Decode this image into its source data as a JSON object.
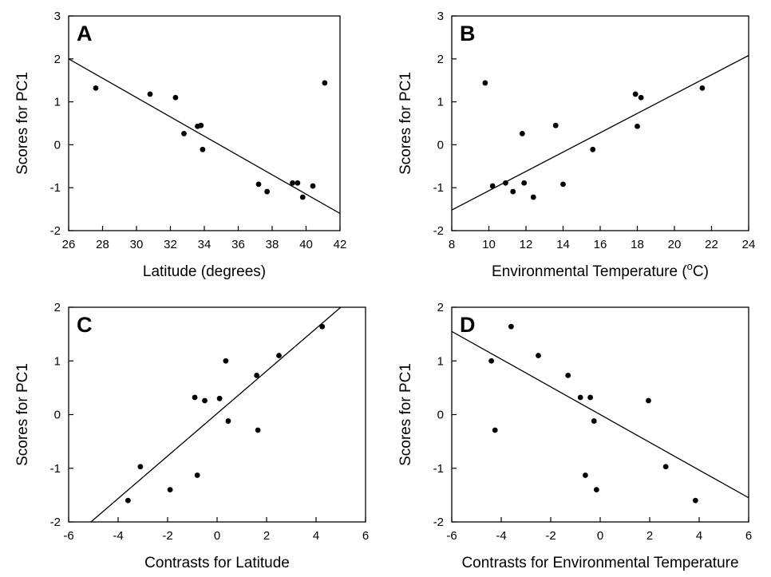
{
  "chart_data": [
    {
      "type": "scatter",
      "panel": "A",
      "xlabel": "Latitude (degrees)",
      "ylabel": "Scores for PC1",
      "xlim": [
        26,
        42
      ],
      "ylim": [
        -2,
        3
      ],
      "xticks": [
        26,
        28,
        30,
        32,
        34,
        36,
        38,
        40,
        42
      ],
      "yticks": [
        -2,
        -1,
        0,
        1,
        2,
        3
      ],
      "points": [
        {
          "x": 27.6,
          "y": 1.32
        },
        {
          "x": 30.8,
          "y": 1.18
        },
        {
          "x": 32.3,
          "y": 1.1
        },
        {
          "x": 32.8,
          "y": 0.26
        },
        {
          "x": 33.6,
          "y": 0.43
        },
        {
          "x": 33.8,
          "y": 0.45
        },
        {
          "x": 33.9,
          "y": -0.11
        },
        {
          "x": 37.2,
          "y": -0.92
        },
        {
          "x": 37.7,
          "y": -1.09
        },
        {
          "x": 39.2,
          "y": -0.89
        },
        {
          "x": 39.5,
          "y": -0.89
        },
        {
          "x": 39.8,
          "y": -1.22
        },
        {
          "x": 40.4,
          "y": -0.96
        },
        {
          "x": 41.1,
          "y": 1.44
        }
      ],
      "fit_line": {
        "x": [
          26,
          42
        ],
        "y": [
          2.0,
          -1.6
        ]
      },
      "grid": false,
      "legend": "none"
    },
    {
      "type": "scatter",
      "panel": "B",
      "xlabel": "Environmental Temperature (",
      "xlabel_sup": "o",
      "xlabel_suffix": "C)",
      "ylabel": "Scores for PC1",
      "xlim": [
        8,
        24
      ],
      "ylim": [
        -2,
        3
      ],
      "xticks": [
        8,
        10,
        12,
        14,
        16,
        18,
        20,
        22,
        24
      ],
      "yticks": [
        -2,
        -1,
        0,
        1,
        2,
        3
      ],
      "points": [
        {
          "x": 9.8,
          "y": 1.44
        },
        {
          "x": 10.2,
          "y": -0.96
        },
        {
          "x": 10.9,
          "y": -0.89
        },
        {
          "x": 11.3,
          "y": -1.09
        },
        {
          "x": 11.8,
          "y": 0.26
        },
        {
          "x": 11.9,
          "y": -0.89
        },
        {
          "x": 12.4,
          "y": -1.22
        },
        {
          "x": 13.6,
          "y": 0.45
        },
        {
          "x": 14.0,
          "y": -0.92
        },
        {
          "x": 15.6,
          "y": -0.11
        },
        {
          "x": 17.9,
          "y": 1.18
        },
        {
          "x": 18.0,
          "y": 0.43
        },
        {
          "x": 18.2,
          "y": 1.1
        },
        {
          "x": 21.5,
          "y": 1.32
        }
      ],
      "fit_line": {
        "x": [
          8,
          24
        ],
        "y": [
          -1.52,
          2.08
        ]
      },
      "grid": false,
      "legend": "none"
    },
    {
      "type": "scatter",
      "panel": "C",
      "xlabel": "Contrasts for Latitude",
      "ylabel": "Scores for PC1",
      "xlim": [
        -6,
        6
      ],
      "ylim": [
        -2,
        2
      ],
      "xticks": [
        -6,
        -4,
        -2,
        0,
        2,
        4,
        6
      ],
      "yticks": [
        -2,
        -1,
        0,
        1,
        2
      ],
      "points": [
        {
          "x": -3.6,
          "y": -1.6
        },
        {
          "x": -3.1,
          "y": -0.97
        },
        {
          "x": -1.9,
          "y": -1.4
        },
        {
          "x": -0.9,
          "y": 0.32
        },
        {
          "x": -0.8,
          "y": -1.13
        },
        {
          "x": -0.5,
          "y": 0.26
        },
        {
          "x": 0.1,
          "y": 0.3
        },
        {
          "x": 0.35,
          "y": 1.0
        },
        {
          "x": 0.45,
          "y": -0.12
        },
        {
          "x": 1.6,
          "y": 0.73
        },
        {
          "x": 1.65,
          "y": -0.29
        },
        {
          "x": 2.5,
          "y": 1.1
        },
        {
          "x": 4.25,
          "y": 1.64
        }
      ],
      "fit_line": {
        "x": [
          -5.1,
          5.0
        ],
        "y": [
          -2.0,
          2.0
        ]
      },
      "grid": false,
      "legend": "none"
    },
    {
      "type": "scatter",
      "panel": "D",
      "xlabel": "Contrasts for Environmental Temperature",
      "ylabel": "Scores for PC1",
      "xlim": [
        -6,
        6
      ],
      "ylim": [
        -2,
        2
      ],
      "xticks": [
        -6,
        -4,
        -2,
        0,
        2,
        4,
        6
      ],
      "yticks": [
        -2,
        -1,
        0,
        1,
        2
      ],
      "points": [
        {
          "x": -4.4,
          "y": 1.0
        },
        {
          "x": -4.25,
          "y": -0.29
        },
        {
          "x": -3.6,
          "y": 1.64
        },
        {
          "x": -2.5,
          "y": 1.1
        },
        {
          "x": -1.3,
          "y": 0.73
        },
        {
          "x": -0.8,
          "y": 0.32
        },
        {
          "x": -0.6,
          "y": -1.13
        },
        {
          "x": -0.4,
          "y": 0.32
        },
        {
          "x": -0.25,
          "y": -0.12
        },
        {
          "x": -0.15,
          "y": -1.4
        },
        {
          "x": 1.95,
          "y": 0.26
        },
        {
          "x": 2.65,
          "y": -0.97
        },
        {
          "x": 3.85,
          "y": -1.6
        }
      ],
      "fit_line": {
        "x": [
          -6,
          6
        ],
        "y": [
          1.55,
          -1.55
        ]
      },
      "grid": false,
      "legend": "none"
    }
  ]
}
